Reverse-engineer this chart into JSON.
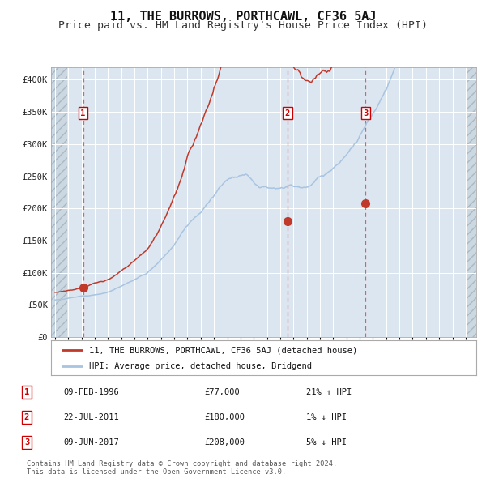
{
  "title": "11, THE BURROWS, PORTHCAWL, CF36 5AJ",
  "subtitle": "Price paid vs. HM Land Registry's House Price Index (HPI)",
  "ylim": [
    0,
    420000
  ],
  "yticks": [
    0,
    50000,
    100000,
    150000,
    200000,
    250000,
    300000,
    350000,
    400000
  ],
  "ytick_labels": [
    "£0",
    "£50K",
    "£100K",
    "£150K",
    "£200K",
    "£250K",
    "£300K",
    "£350K",
    "£400K"
  ],
  "xlim_start": 1993.7,
  "xlim_end": 2025.8,
  "plot_bg_color": "#dce6f1",
  "hpi_color": "#a8c4e0",
  "price_color": "#c0392b",
  "sale_marker_color": "#c0392b",
  "vline_color": "#e05050",
  "sales": [
    {
      "num": 1,
      "date_str": "09-FEB-1996",
      "date_x": 1996.12,
      "price": 77000,
      "pct": "21%",
      "dir": "↑"
    },
    {
      "num": 2,
      "date_str": "22-JUL-2011",
      "date_x": 2011.55,
      "price": 180000,
      "pct": "1%",
      "dir": "↓"
    },
    {
      "num": 3,
      "date_str": "09-JUN-2017",
      "date_x": 2017.44,
      "price": 208000,
      "pct": "5%",
      "dir": "↓"
    }
  ],
  "legend_label_price": "11, THE BURROWS, PORTHCAWL, CF36 5AJ (detached house)",
  "legend_label_hpi": "HPI: Average price, detached house, Bridgend",
  "footer1": "Contains HM Land Registry data © Crown copyright and database right 2024.",
  "footer2": "This data is licensed under the Open Government Licence v3.0.",
  "title_fontsize": 11,
  "subtitle_fontsize": 9.5
}
